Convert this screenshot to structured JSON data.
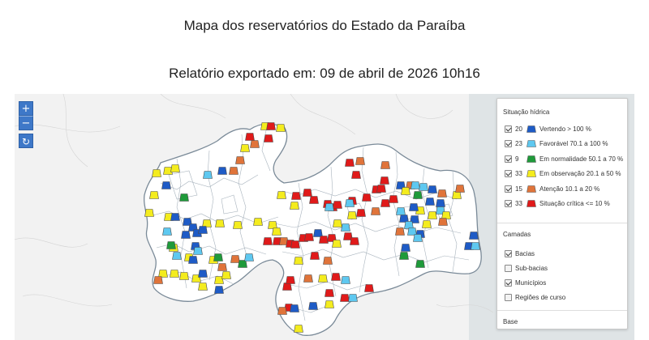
{
  "header": {
    "title": "Mapa dos reservatórios do Estado da Paraíba",
    "subtitle": "Relatório exportado em: 09 de abril de 2026 10h16"
  },
  "map_controls": {
    "zoom_in": "+",
    "zoom_out": "−",
    "reset": "↻"
  },
  "legend": {
    "situacao_title": "Situação hídrica",
    "situacao_items": [
      {
        "count": "20",
        "label": "Vertendo > 100 %",
        "color": "#1e5bc6",
        "checked": true
      },
      {
        "count": "23",
        "label": "Favorável 70.1 a 100 %",
        "color": "#5ec8f0",
        "checked": true
      },
      {
        "count": "9",
        "label": "Em normalidade 50.1 a 70 %",
        "color": "#1f9a3a",
        "checked": true
      },
      {
        "count": "33",
        "label": "Em observação 20.1 a 50 %",
        "color": "#f4ec1e",
        "checked": true
      },
      {
        "count": "15",
        "label": "Atenção 10.1 a 20 %",
        "color": "#e0743a",
        "checked": true
      },
      {
        "count": "33",
        "label": "Situação crítica <= 10 %",
        "color": "#e01a1a",
        "checked": true
      }
    ],
    "camadas_title": "Camadas",
    "camadas_items": [
      {
        "label": "Bacias",
        "checked": true
      },
      {
        "label": "Sub-bacias",
        "checked": false
      },
      {
        "label": "Municípios",
        "checked": true
      },
      {
        "label": "Regiões de curso",
        "checked": false
      }
    ],
    "base_title": "Base"
  },
  "marker_colors": {
    "B": "#1e5bc6",
    "L": "#5ec8f0",
    "G": "#1f9a3a",
    "Y": "#f4ec1e",
    "O": "#e0743a",
    "R": "#e01a1a"
  }
}
